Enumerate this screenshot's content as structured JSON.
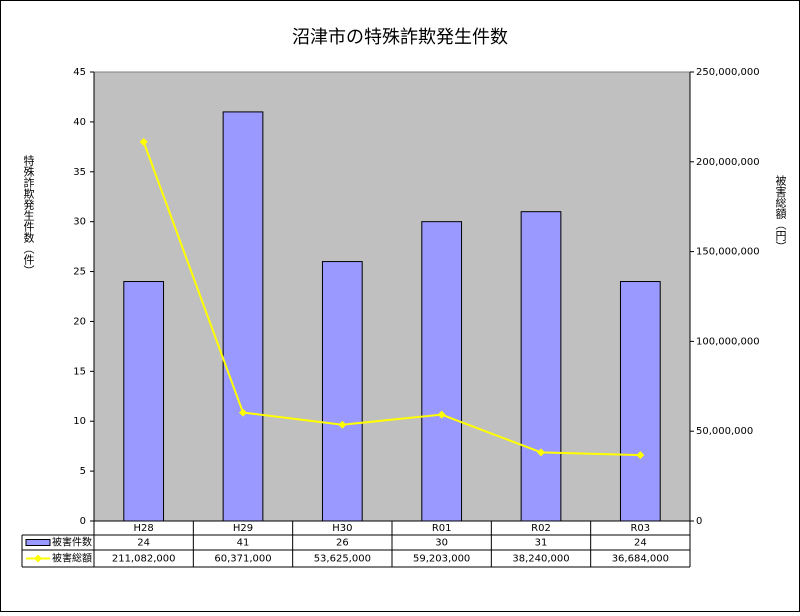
{
  "chart_data": {
    "type": "bar",
    "title": "沼津市の特殊詐欺発生件数",
    "y_label": "特殊詐欺発生件数（件）",
    "y2_label": "被害総額（円）",
    "categories": [
      "H28",
      "H29",
      "H30",
      "R01",
      "R02",
      "R03"
    ],
    "series": [
      {
        "name": "被害件数",
        "type": "bar",
        "color": "#9999ff",
        "values": [
          24,
          41,
          26,
          30,
          31,
          24
        ]
      },
      {
        "name": "被害総額",
        "type": "line",
        "axis": "y2",
        "color": "#ffff00",
        "values": [
          211082000,
          60371000,
          53625000,
          59203000,
          38240000,
          36684000
        ],
        "value_labels": [
          "211,082,000",
          "60,371,000",
          "53,625,000",
          "59,203,000",
          "38,240,000",
          "36,684,000"
        ]
      }
    ],
    "ylim": [
      0,
      45
    ],
    "yticks": [
      0,
      5,
      10,
      15,
      20,
      25,
      30,
      35,
      40,
      45
    ],
    "y2lim": [
      0,
      250000000
    ],
    "y2ticks": [
      0,
      {
        "value": 50000000,
        "label": "50,000,000"
      },
      {
        "value": 100000000,
        "label": "100,000,000"
      },
      {
        "value": 150000000,
        "label": "150,000,000"
      },
      {
        "value": 200000000,
        "label": "200,000,000"
      },
      {
        "value": 250000000,
        "label": "250,000,000"
      }
    ],
    "plot_background": "#c0c0c0"
  }
}
